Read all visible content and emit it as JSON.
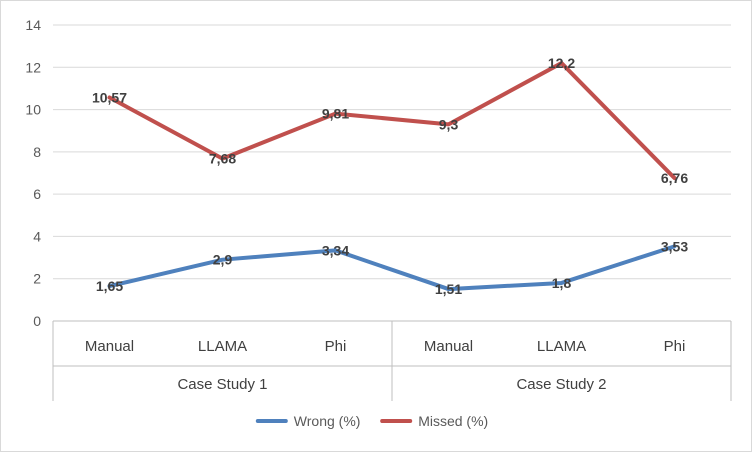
{
  "chart_data": {
    "type": "line",
    "title": "",
    "xlabel": "",
    "ylabel": "",
    "ylim": [
      0,
      14
    ],
    "yticks": [
      0,
      2,
      4,
      6,
      8,
      10,
      12,
      14
    ],
    "grid": true,
    "legend_position": "bottom",
    "categories": [
      "Manual",
      "LLAMA",
      "Phi",
      "Manual",
      "LLAMA",
      "Phi"
    ],
    "groups": [
      {
        "label": "Case Study 1",
        "span": 3
      },
      {
        "label": "Case Study 2",
        "span": 3
      }
    ],
    "series": [
      {
        "name": "Wrong (%)",
        "color": "#4F81BD",
        "values": [
          1.65,
          2.9,
          3.34,
          1.51,
          1.8,
          3.53
        ],
        "labels": [
          "1,65",
          "2,9",
          "3,34",
          "1,51",
          "1,8",
          "3,53"
        ]
      },
      {
        "name": "Missed (%)",
        "color": "#C0504D",
        "values": [
          10.57,
          7.68,
          9.81,
          9.3,
          12.2,
          6.76
        ],
        "labels": [
          "10,57",
          "7,68",
          "9,81",
          "9,3",
          "12,2",
          "6,76"
        ]
      }
    ]
  }
}
